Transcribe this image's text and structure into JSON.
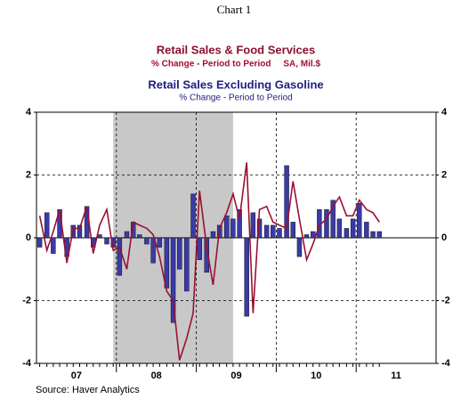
{
  "chart_data": {
    "type": "bar_line",
    "chart_label": "Chart 1",
    "title": "Retail Sales & Food Services",
    "subtitle": "% Change - Period to Period     SA, Mil.$",
    "title2": "Retail Sales Excluding Gasoline",
    "subtitle2": "% Change - Period to Period",
    "source": "Source: Haver Analytics",
    "x": [
      2007.04,
      2007.13,
      2007.21,
      2007.29,
      2007.38,
      2007.46,
      2007.54,
      2007.63,
      2007.71,
      2007.79,
      2007.88,
      2007.96,
      2008.04,
      2008.13,
      2008.21,
      2008.29,
      2008.38,
      2008.46,
      2008.54,
      2008.63,
      2008.71,
      2008.79,
      2008.88,
      2008.96,
      2009.04,
      2009.13,
      2009.21,
      2009.29,
      2009.38,
      2009.46,
      2009.54,
      2009.63,
      2009.71,
      2009.79,
      2009.88,
      2009.96,
      2010.04,
      2010.13,
      2010.21,
      2010.29,
      2010.38,
      2010.46,
      2010.54,
      2010.63,
      2010.71,
      2010.79,
      2010.88,
      2010.96,
      2011.04,
      2011.13,
      2011.21,
      2011.29
    ],
    "series": [
      {
        "name": "Retail Sales Excluding Gasoline",
        "kind": "bar",
        "color": "#3a3aa8",
        "values": [
          -0.3,
          0.8,
          -0.5,
          0.9,
          -0.6,
          0.4,
          0.4,
          1.0,
          -0.3,
          0.1,
          -0.2,
          -0.3,
          -1.2,
          0.2,
          0.5,
          0.1,
          -0.2,
          -0.8,
          -0.3,
          -1.6,
          -2.7,
          -1.0,
          -1.7,
          1.4,
          -0.7,
          -1.1,
          0.2,
          0.4,
          0.7,
          0.6,
          0.9,
          -2.5,
          0.8,
          0.6,
          0.4,
          0.4,
          0.3,
          2.3,
          0.5,
          -0.6,
          0.1,
          0.2,
          0.9,
          0.9,
          1.2,
          0.6,
          0.3,
          0.6,
          1.1,
          0.5,
          0.2,
          0.2
        ]
      },
      {
        "name": "Retail Sales & Food Services",
        "kind": "line",
        "color": "#9b1030",
        "values": [
          0.7,
          -0.4,
          0.2,
          0.9,
          -0.8,
          0.3,
          0.3,
          1.0,
          -0.5,
          0.4,
          0.9,
          -0.4,
          -0.3,
          -1.0,
          0.5,
          0.4,
          0.3,
          0.1,
          -0.6,
          -1.7,
          -2.0,
          -3.9,
          -3.2,
          -2.4,
          1.5,
          -0.3,
          -1.5,
          0.3,
          0.8,
          1.4,
          0.6,
          2.4,
          -2.4,
          0.9,
          1.0,
          0.5,
          0.4,
          0.3,
          1.8,
          0.6,
          -0.7,
          -0.2,
          0.4,
          0.6,
          1.0,
          1.3,
          0.7,
          0.7,
          1.2,
          0.9,
          0.8,
          0.5
        ]
      }
    ],
    "xlim": [
      2007,
      2012
    ],
    "xticks": [
      {
        "value": 2007.5,
        "label": "07"
      },
      {
        "value": 2008.5,
        "label": "08"
      },
      {
        "value": 2009.5,
        "label": "09"
      },
      {
        "value": 2010.5,
        "label": "10"
      },
      {
        "value": 2011.5,
        "label": "11"
      }
    ],
    "xgrid": [
      2008,
      2009,
      2010,
      2011
    ],
    "shade": [
      2007.96,
      2009.46
    ],
    "ylim": [
      -4,
      4
    ],
    "yticks": [
      -4,
      -2,
      0,
      2,
      4
    ],
    "grid": true
  }
}
